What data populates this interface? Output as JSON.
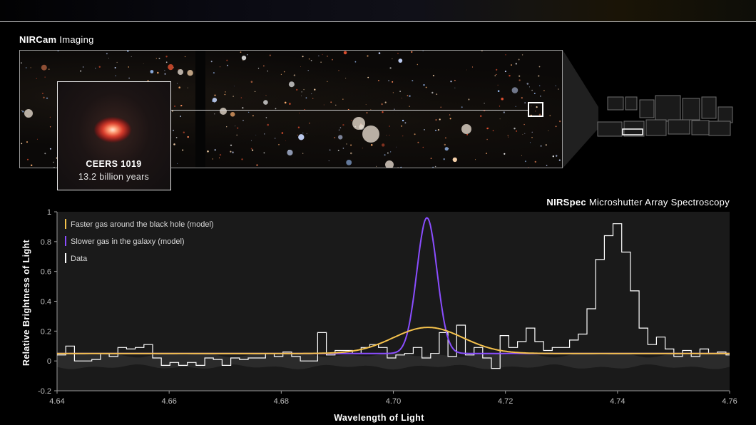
{
  "header": {
    "imaging_title_bold": "NIRCam",
    "imaging_title_rest": " Imaging",
    "spectroscopy_title_bold": "NIRSpec",
    "spectroscopy_title_rest": " Microshutter Array Spectroscopy"
  },
  "inset": {
    "name": "CEERS 1019",
    "age": "13.2 billion years"
  },
  "colors": {
    "faster_gas": "#f5c24c",
    "slower_gas": "#8a4dff",
    "data": "#ffffff",
    "error_band": "#3a3a3a",
    "plot_bg": "#1a1a1a"
  },
  "chart_data": {
    "type": "line",
    "title": "",
    "xlabel": "Wavelength of Light",
    "ylabel": "Relative Brightness of Light",
    "xlim": [
      4.64,
      4.76
    ],
    "ylim": [
      -0.2,
      1.0
    ],
    "x_ticks": [
      4.64,
      4.66,
      4.68,
      4.7,
      4.72,
      4.74,
      4.76
    ],
    "x_tick_labels": [
      "4.64",
      "4.66",
      "4.68",
      "4.70",
      "4.72",
      "4.74",
      "4.76"
    ],
    "y_ticks": [
      -0.2,
      0,
      0.2,
      0.4,
      0.6,
      0.8,
      1
    ],
    "y_tick_labels": [
      "-0.2",
      "0",
      "0.2",
      "0.4",
      "0.6",
      "0.8",
      "1"
    ],
    "legend_position": "top-left",
    "legend": [
      {
        "label": "Faster gas around the black hole (model)",
        "color": "#f5c24c"
      },
      {
        "label": "Slower gas in the galaxy (model)",
        "color": "#8a4dff"
      },
      {
        "label": "Data",
        "color": "#ffffff"
      }
    ],
    "series": [
      {
        "name": "Faster gas around the black hole (model)",
        "kind": "gaussian",
        "baseline": 0.05,
        "amplitude": 0.175,
        "center": 4.7062,
        "sigma": 0.0062
      },
      {
        "name": "Slower gas in the galaxy (model)",
        "kind": "gaussian",
        "baseline": 0.05,
        "amplitude": 0.91,
        "center": 4.706,
        "sigma": 0.0018
      },
      {
        "name": "Data",
        "kind": "step",
        "bin_start": 4.64,
        "bin_width": 0.00155,
        "values": [
          0.04,
          0.1,
          0.0,
          0.0,
          0.01,
          0.05,
          0.03,
          0.09,
          0.08,
          0.09,
          0.11,
          0.02,
          -0.03,
          -0.01,
          -0.03,
          -0.01,
          -0.03,
          0.02,
          0.01,
          -0.03,
          0.02,
          0.01,
          0.02,
          0.02,
          0.05,
          0.03,
          0.06,
          0.03,
          0.0,
          0.0,
          0.19,
          0.04,
          0.07,
          0.07,
          0.05,
          0.09,
          0.11,
          0.09,
          0.02,
          0.04,
          0.05,
          0.09,
          0.02,
          0.05,
          0.19,
          0.03,
          0.24,
          0.04,
          0.09,
          0.02,
          -0.05,
          0.17,
          0.09,
          0.13,
          0.22,
          0.13,
          0.07,
          0.09,
          0.09,
          0.14,
          0.18,
          0.35,
          0.68,
          0.84,
          0.92,
          0.73,
          0.47,
          0.22,
          0.11,
          0.16,
          0.08,
          0.03,
          0.07,
          0.03,
          0.08,
          0.05,
          0.06,
          0.04,
          0.06,
          0.07,
          0.04,
          0.02,
          0.07,
          0.08,
          -0.07,
          0.01,
          0.11,
          0.07,
          0.0,
          0.07,
          0.02,
          -0.01,
          0.01,
          0.06,
          -0.03,
          0.02,
          0.07,
          -0.08,
          -0.13,
          0.01,
          0.02,
          -0.02,
          0.03,
          0.01,
          0.08,
          0.01,
          -0.01,
          -0.02,
          0.05,
          0.07,
          0.05,
          0.03,
          0.03,
          0.01,
          0.04,
          0.07,
          0.06,
          -0.02,
          -0.04,
          0.01,
          0.03,
          0.04,
          0.07,
          0.05,
          0.09,
          0.08,
          0.06,
          -0.01,
          0.02,
          0.05,
          0.03,
          0.07,
          0.04,
          0.09,
          0.02,
          0.08,
          0.0,
          0.04,
          -0.03,
          0.03,
          0.02,
          0.05,
          0.08,
          0.06,
          0.04,
          0.05,
          0.09,
          0.03,
          0.05,
          0.04,
          0.06,
          0.05,
          0.02,
          0.08,
          -0.01,
          0.07,
          0.05,
          0.04,
          0.05,
          0.02,
          0.06,
          0.04,
          0.05
        ]
      },
      {
        "name": "",
        "kind": "band",
        "half_width": 0.05
      }
    ]
  }
}
